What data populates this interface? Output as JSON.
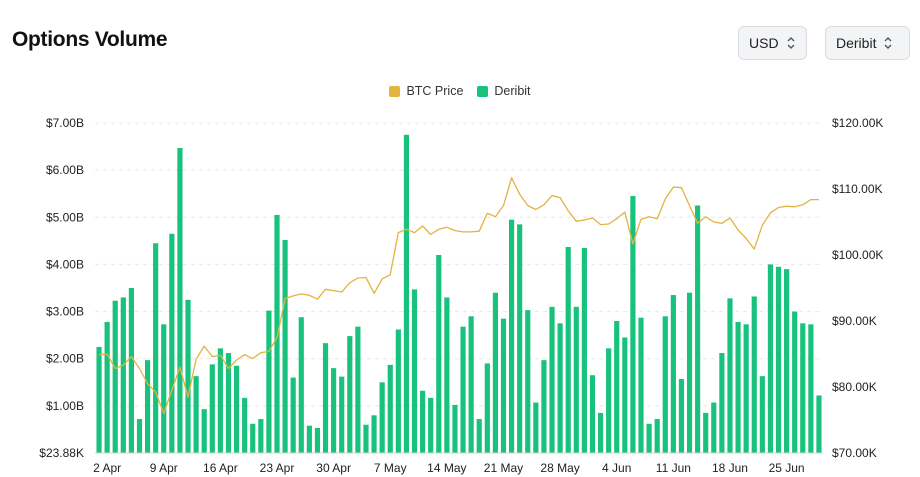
{
  "header": {
    "title": "Options Volume"
  },
  "controls": {
    "currency": {
      "value": "USD"
    },
    "exchange": {
      "value": "Deribit"
    }
  },
  "colors": {
    "bar": "#18c27c",
    "line": "#e3b341",
    "grid": "#e6e8eb"
  },
  "chart_data": {
    "type": "bar",
    "legend": [
      {
        "name": "BTC Price",
        "color": "#e3b341",
        "kind": "line"
      },
      {
        "name": "Deribit",
        "color": "#18c27c",
        "kind": "bar"
      }
    ],
    "y_left": {
      "min": 0,
      "max": 7000000000,
      "ticks": [
        "$23.88K",
        "$1.00B",
        "$2.00B",
        "$3.00B",
        "$4.00B",
        "$5.00B",
        "$6.00B",
        "$7.00B"
      ]
    },
    "y_right": {
      "min": 70000,
      "max": 120000,
      "ticks": [
        "$70.00K",
        "$80.00K",
        "$90.00K",
        "$100.00K",
        "$110.00K",
        "$120.00K"
      ]
    },
    "x_ticks": [
      {
        "label": "2 Apr",
        "index": 1
      },
      {
        "label": "9 Apr",
        "index": 8
      },
      {
        "label": "16 Apr",
        "index": 15
      },
      {
        "label": "23 Apr",
        "index": 22
      },
      {
        "label": "30 Apr",
        "index": 29
      },
      {
        "label": "7 May",
        "index": 36
      },
      {
        "label": "14 May",
        "index": 43
      },
      {
        "label": "21 May",
        "index": 50
      },
      {
        "label": "28 May",
        "index": 57
      },
      {
        "label": "4 Jun",
        "index": 64
      },
      {
        "label": "11 Jun",
        "index": 71
      },
      {
        "label": "18 Jun",
        "index": 78
      },
      {
        "label": "25 Jun",
        "index": 85
      }
    ],
    "volume": [
      2.25,
      2.78,
      3.23,
      3.3,
      3.5,
      0.72,
      1.97,
      4.45,
      2.73,
      4.65,
      6.47,
      3.25,
      1.63,
      0.93,
      1.88,
      2.22,
      2.12,
      1.85,
      1.17,
      0.62,
      0.72,
      3.02,
      5.05,
      4.52,
      1.6,
      2.88,
      0.58,
      0.53,
      2.33,
      1.8,
      1.62,
      2.48,
      2.68,
      0.6,
      0.8,
      1.5,
      1.87,
      2.62,
      6.75,
      3.47,
      1.32,
      1.17,
      4.2,
      3.3,
      1.02,
      2.68,
      2.9,
      0.72,
      1.9,
      3.4,
      2.85,
      4.95,
      4.85,
      3.03,
      1.07,
      1.97,
      3.1,
      2.75,
      4.37,
      3.1,
      4.35,
      1.65,
      0.85,
      2.22,
      2.8,
      2.45,
      5.45,
      2.87,
      0.62,
      0.72,
      2.9,
      3.35,
      1.57,
      3.4,
      5.25,
      0.85,
      1.07,
      2.12,
      3.28,
      2.78,
      2.73,
      3.32,
      1.63,
      4.0,
      3.95,
      3.9,
      3.0,
      2.75,
      2.73,
      1.22
    ],
    "btc_price": [
      84900,
      85000,
      82800,
      83300,
      84600,
      82800,
      80500,
      79200,
      76000,
      79500,
      83000,
      78500,
      84200,
      86200,
      84600,
      84800,
      82800,
      84100,
      84900,
      84300,
      85200,
      85400,
      87500,
      93400,
      93800,
      94100,
      93900,
      93300,
      94800,
      94600,
      94400,
      95800,
      96500,
      96600,
      94200,
      96400,
      97000,
      103400,
      103900,
      103400,
      104400,
      103100,
      103900,
      104200,
      103700,
      103500,
      103500,
      103600,
      106300,
      105800,
      107500,
      111700,
      109200,
      107500,
      106900,
      107600,
      109000,
      108700,
      106700,
      105100,
      105300,
      105600,
      104600,
      104700,
      105500,
      106500,
      101700,
      105400,
      105800,
      105500,
      108500,
      110300,
      110200,
      107500,
      104800,
      105800,
      105000,
      104800,
      105600,
      103800,
      102500,
      100900,
      104500,
      106400,
      107200,
      107400,
      107300,
      107600,
      108400,
      108400
    ]
  }
}
